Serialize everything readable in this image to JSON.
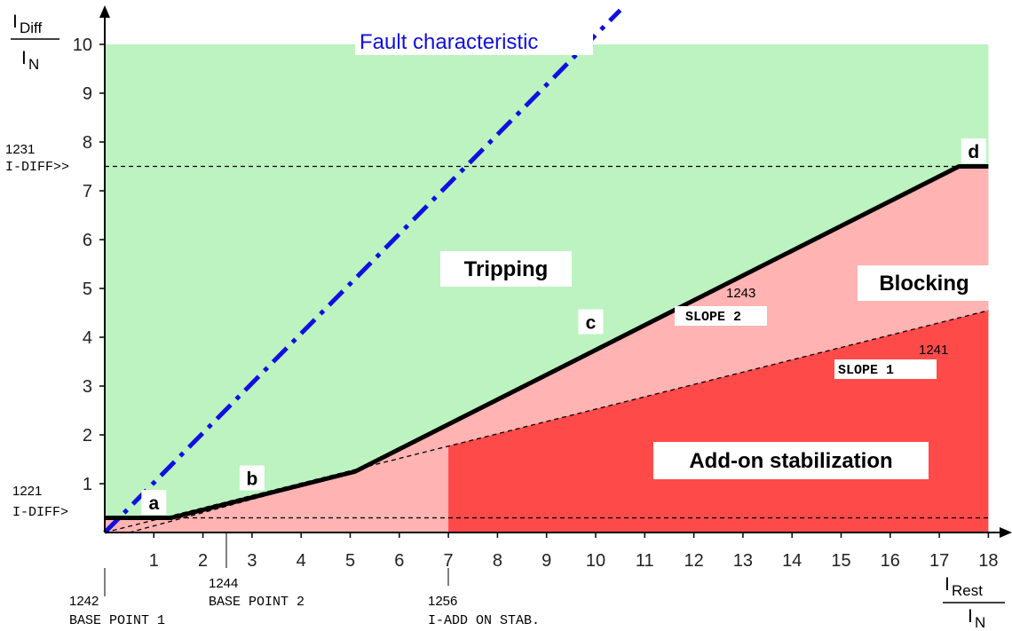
{
  "chart_data": {
    "type": "line",
    "x_axis": {
      "label_main": "I",
      "label_sub": "Rest",
      "label_den_main": "I",
      "label_den_sub": "N",
      "range": [
        0,
        18
      ],
      "ticks": [
        1,
        2,
        3,
        4,
        5,
        6,
        7,
        8,
        9,
        10,
        11,
        12,
        13,
        14,
        15,
        16,
        17,
        18
      ]
    },
    "y_axis": {
      "label_main": "I",
      "label_sub": "Diff",
      "label_den_main": "I",
      "label_den_sub": "N",
      "range": [
        0,
        10
      ],
      "ticks": [
        1,
        2,
        3,
        4,
        5,
        6,
        7,
        8,
        9,
        10
      ]
    },
    "series": [
      {
        "name": "Fault characteristic",
        "color": "#1010e0",
        "style": "dash-dot",
        "points": [
          [
            0,
            0
          ],
          [
            10.5,
            10.7
          ]
        ]
      },
      {
        "color": "#000000",
        "style": "solid",
        "points": [
          [
            0,
            0.3
          ],
          [
            1.35,
            0.3
          ],
          [
            5.1,
            1.25
          ],
          [
            17.4,
            7.5
          ],
          [
            18,
            7.5
          ]
        ]
      },
      {
        "color": "#000000",
        "style": "dashed",
        "points": [
          [
            0.5,
            0
          ],
          [
            5.1,
            1.25
          ]
        ]
      },
      {
        "color": "#000000",
        "style": "dashed",
        "points": [
          [
            0,
            0
          ],
          [
            18,
            4.55
          ]
        ]
      }
    ],
    "regions": {
      "tripping": {
        "label": "Tripping",
        "color": "#bdf3c1"
      },
      "blocking": {
        "label": "Blocking",
        "color": "#ffb3b3"
      },
      "addon": {
        "label": "Add-on stabilization",
        "color": "#ff4a4a",
        "x_start": 7,
        "top_at_start": 1.77,
        "top_at_end": 4.55
      }
    },
    "reference_lines": [
      {
        "axis": "y",
        "value": 7.5
      },
      {
        "axis": "y",
        "value": 0.3
      }
    ],
    "point_labels": [
      {
        "label": "a",
        "x": 1.0,
        "y": 0.6
      },
      {
        "label": "b",
        "x": 3.0,
        "y": 1.1
      },
      {
        "label": "c",
        "x": 9.9,
        "y": 4.3
      },
      {
        "label": "d",
        "x": 17.7,
        "y": 7.8
      }
    ],
    "annotations": {
      "y_threshold_high": {
        "id": "1231",
        "name": "I-DIFF>>",
        "value": 7.5
      },
      "y_threshold_low": {
        "id": "1221",
        "name": "I-DIFF>",
        "value": 0.3
      },
      "slope2": {
        "id": "1243",
        "name": "SLOPE 2"
      },
      "slope1": {
        "id": "1241",
        "name": "SLOPE 1"
      },
      "base_point_1": {
        "id": "1242",
        "name": "BASE POINT 1",
        "value": 0
      },
      "base_point_2": {
        "id": "1244",
        "name": "BASE POINT 2",
        "value": 2.5
      },
      "add_on_stab": {
        "id": "1256",
        "name": "I-ADD ON STAB.",
        "value": 7
      }
    }
  }
}
